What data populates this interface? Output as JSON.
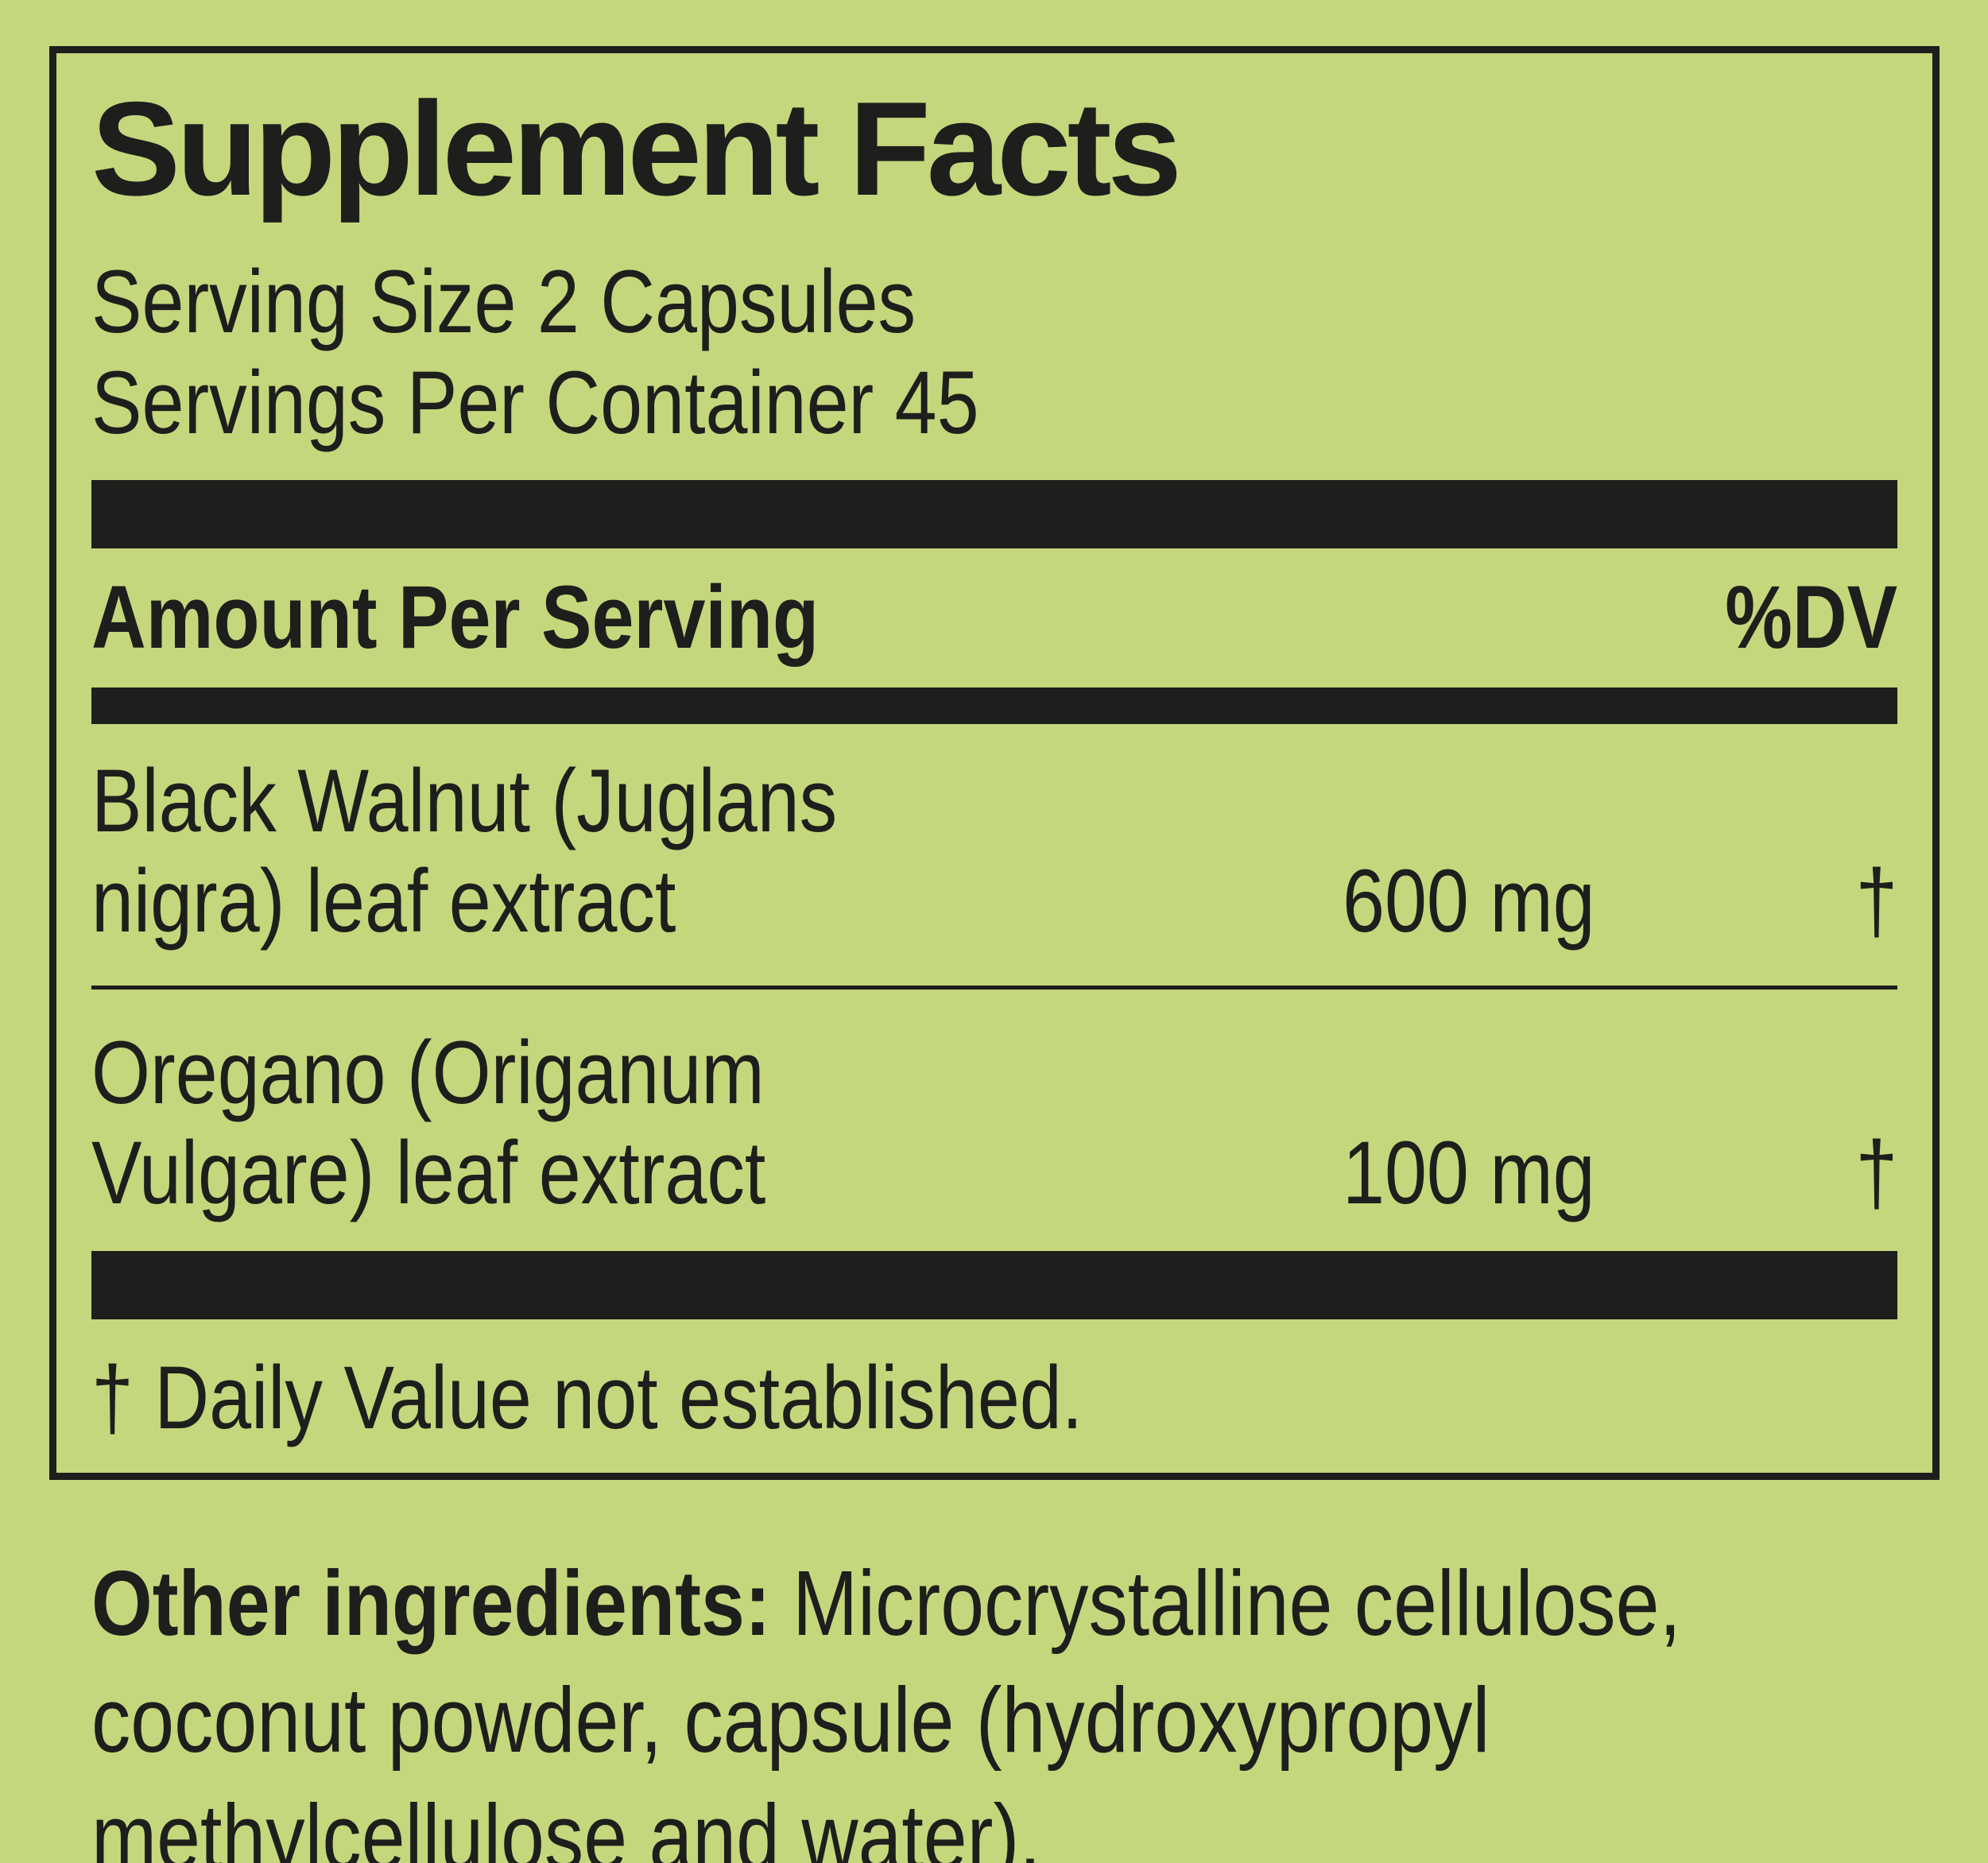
{
  "label": {
    "title": "Supplement Facts",
    "serving_size": "Serving Size 2 Capsules",
    "servings_per_container": "Servings Per Container 45",
    "header": {
      "amount_per_serving": "Amount Per Serving",
      "dv": "%DV"
    },
    "rows": [
      {
        "name_line1": "Black Walnut (Juglans",
        "name_line2": "nigra) leaf extract",
        "amount": "600 mg",
        "dv": "†"
      },
      {
        "name_line1": "Oregano (Origanum",
        "name_line2": "Vulgare) leaf extract",
        "amount": "100 mg",
        "dv": "†"
      }
    ],
    "footnote": "† Daily Value not established.",
    "other_ingredients_label": "Other ingredients:",
    "other_ingredients_text": " Microcrystalline cellulose, coconut powder, capsule (hydroxypropyl methylcellulose and water).",
    "colors": {
      "background": "#c4d77c",
      "ink": "#1e1e1c"
    }
  }
}
